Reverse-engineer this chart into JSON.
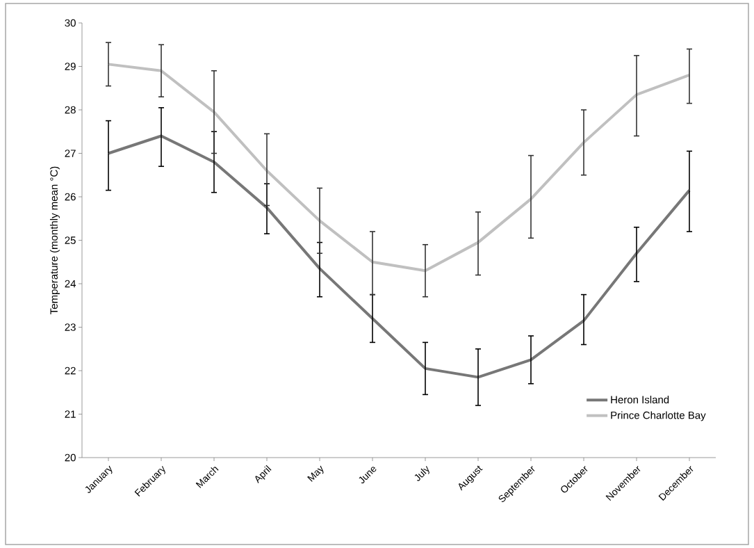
{
  "chart_data": {
    "type": "line",
    "ylabel": "Temperature (monthly mean °C)",
    "categories": [
      "January",
      "February",
      "March",
      "April",
      "May",
      "June",
      "July",
      "August",
      "September",
      "October",
      "November",
      "December"
    ],
    "series": [
      {
        "name": "Heron Island",
        "color": "#777777",
        "values": [
          27.0,
          27.4,
          26.8,
          25.75,
          24.35,
          23.2,
          22.05,
          21.85,
          22.25,
          23.15,
          24.7,
          26.15
        ],
        "errors": [
          [
            26.15,
            27.75
          ],
          [
            26.7,
            28.05
          ],
          [
            26.1,
            27.5
          ],
          [
            25.15,
            26.3
          ],
          [
            23.7,
            24.95
          ],
          [
            22.65,
            23.75
          ],
          [
            21.45,
            22.65
          ],
          [
            21.2,
            22.5
          ],
          [
            21.7,
            22.8
          ],
          [
            22.6,
            23.75
          ],
          [
            24.05,
            25.3
          ],
          [
            25.2,
            27.05
          ]
        ]
      },
      {
        "name": "Prince Charlotte Bay",
        "color": "#c0c0c0",
        "values": [
          29.05,
          28.9,
          27.95,
          26.6,
          25.45,
          24.5,
          24.3,
          24.95,
          25.95,
          27.25,
          28.35,
          28.8
        ],
        "errors": [
          [
            28.55,
            29.55
          ],
          [
            28.3,
            29.5
          ],
          [
            27.0,
            28.9
          ],
          [
            25.8,
            27.45
          ],
          [
            24.7,
            26.2
          ],
          [
            23.75,
            25.2
          ],
          [
            23.7,
            24.9
          ],
          [
            24.2,
            25.65
          ],
          [
            25.05,
            26.95
          ],
          [
            26.5,
            28.0
          ],
          [
            27.4,
            29.25
          ],
          [
            28.15,
            29.4
          ]
        ]
      }
    ],
    "ylim": [
      20,
      30
    ],
    "yticks": [
      20,
      21,
      22,
      23,
      24,
      25,
      26,
      27,
      28,
      29,
      30
    ],
    "legend": "bottom right"
  }
}
